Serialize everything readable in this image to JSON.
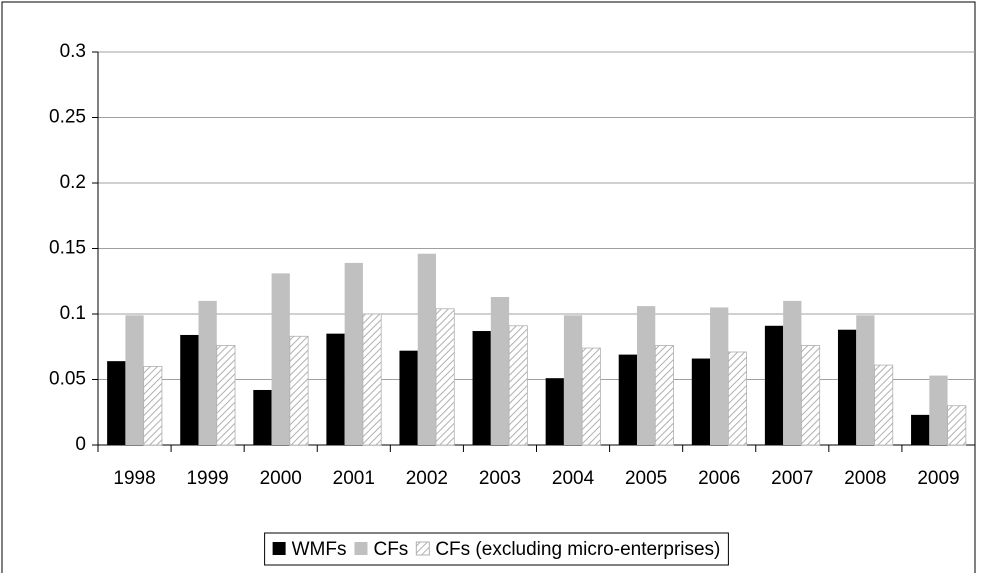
{
  "chart_data": {
    "type": "bar",
    "categories": [
      "1998",
      "1999",
      "2000",
      "2001",
      "2002",
      "2003",
      "2004",
      "2005",
      "2006",
      "2007",
      "2008",
      "2009"
    ],
    "series": [
      {
        "name": "WMFs",
        "color": "#000000",
        "values": [
          0.064,
          0.084,
          0.042,
          0.085,
          0.072,
          0.087,
          0.051,
          0.069,
          0.066,
          0.091,
          0.088,
          0.023
        ]
      },
      {
        "name": "CFs",
        "color": "#c0c0c0",
        "values": [
          0.099,
          0.11,
          0.131,
          0.139,
          0.146,
          0.113,
          0.099,
          0.106,
          0.105,
          0.11,
          0.099,
          0.053
        ]
      },
      {
        "name": "CFs (excluding micro-enterprises)",
        "color": "#b0b0b0",
        "hatch": true,
        "values": [
          0.06,
          0.076,
          0.083,
          0.1,
          0.104,
          0.091,
          0.074,
          0.076,
          0.071,
          0.076,
          0.061,
          0.03
        ]
      }
    ],
    "ylim": [
      0,
      0.3
    ],
    "yticks": [
      0,
      0.05,
      0.1,
      0.15,
      0.2,
      0.25,
      0.3
    ],
    "grid": true,
    "legend": "bottom"
  }
}
